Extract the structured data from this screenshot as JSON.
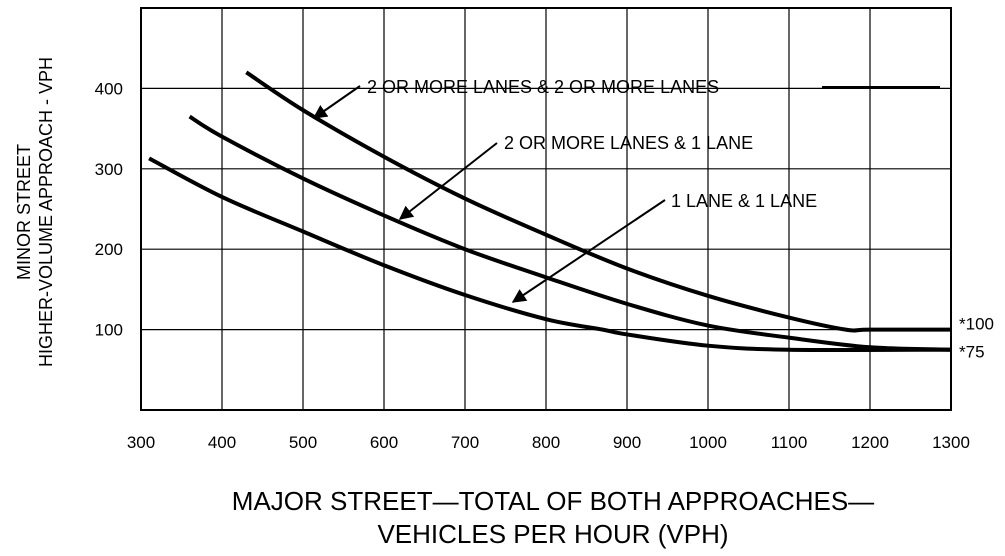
{
  "chart_data": {
    "type": "line",
    "title": "",
    "xlabel": [
      "MAJOR STREET—TOTAL OF BOTH APPROACHES—",
      "VEHICLES PER HOUR (VPH)"
    ],
    "ylabel": [
      "MINOR STREET",
      "HIGHER-VOLUME APPROACH - VPH"
    ],
    "xlim": [
      300,
      1300
    ],
    "ylim": [
      0,
      500
    ],
    "x_ticks": [
      "300",
      "400",
      "500",
      "600",
      "700",
      "800",
      "900",
      "1000",
      "1100",
      "1200",
      "1300"
    ],
    "y_ticks": [
      "100",
      "200",
      "300",
      "400"
    ],
    "grid": true,
    "series": [
      {
        "name": "2 OR MORE LANES & 2 OR MORE LANES",
        "x": [
          430,
          500,
          600,
          700,
          800,
          900,
          1000,
          1100,
          1170,
          1200,
          1300
        ],
        "y": [
          420,
          373,
          315,
          263,
          218,
          176,
          142,
          115,
          100,
          100,
          100
        ]
      },
      {
        "name": "2 OR MORE LANES & 1 LANE",
        "x": [
          360,
          400,
          500,
          600,
          700,
          800,
          900,
          1000,
          1100,
          1200,
          1300
        ],
        "y": [
          365,
          340,
          288,
          242,
          200,
          165,
          132,
          105,
          90,
          78,
          75
        ]
      },
      {
        "name": "1 LANE & 1 LANE",
        "x": [
          310,
          400,
          500,
          600,
          700,
          800,
          870,
          900,
          1000,
          1100,
          1300
        ],
        "y": [
          313,
          265,
          222,
          180,
          143,
          113,
          100,
          94,
          80,
          75,
          75
        ]
      }
    ],
    "annotations": [
      {
        "text": "2 OR MORE LANES & 2 OR MORE LANES",
        "series": 0
      },
      {
        "text": "2 OR MORE LANES & 1 LANE",
        "series": 1
      },
      {
        "text": "1 LANE & 1 LANE",
        "series": 2
      }
    ],
    "end_labels": [
      {
        "text": "*100",
        "y": 100
      },
      {
        "text": "*75",
        "y": 75
      }
    ]
  }
}
